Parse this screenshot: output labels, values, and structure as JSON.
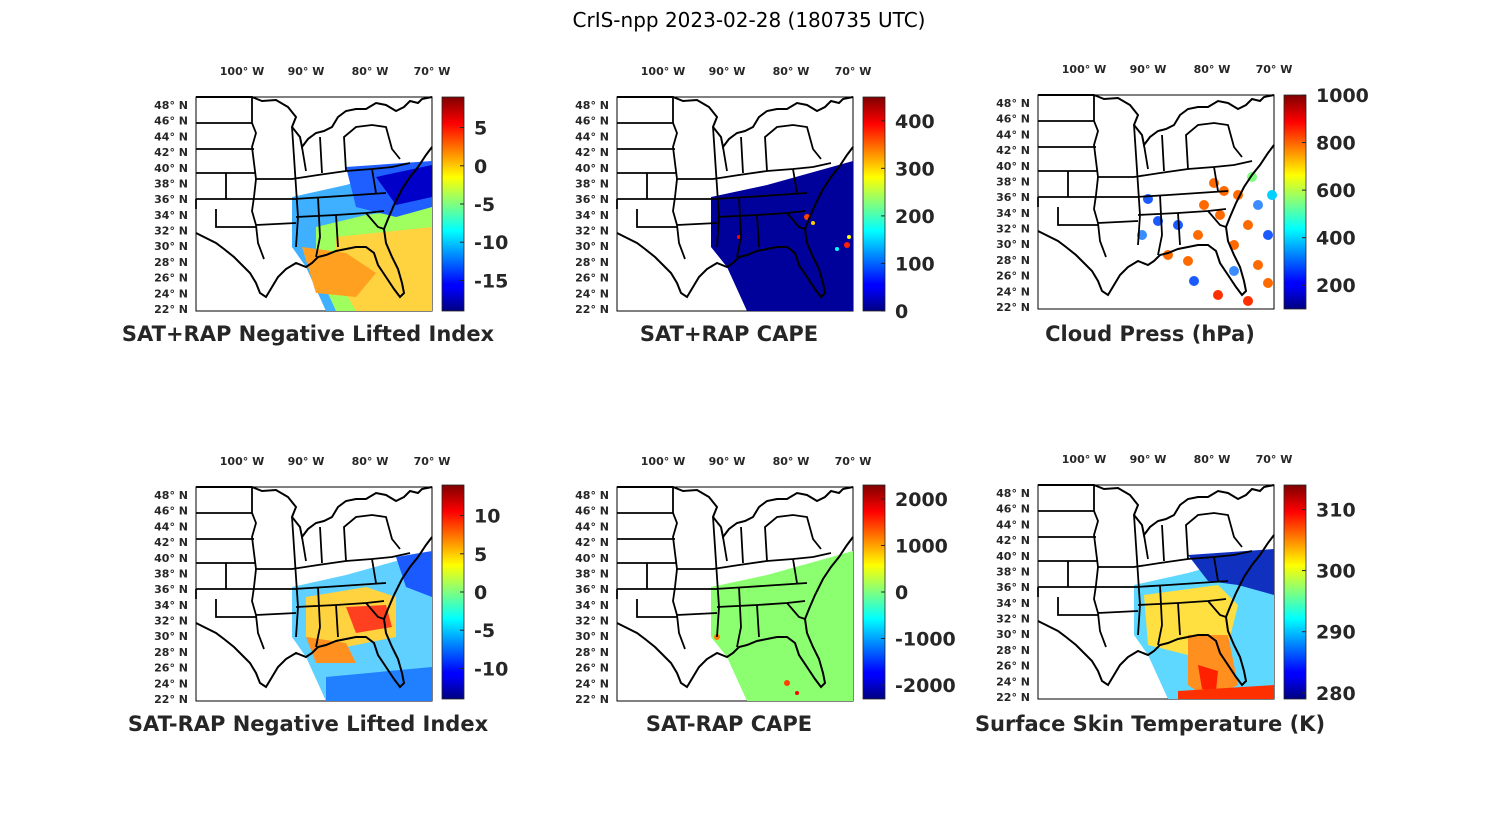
{
  "figure": {
    "suptitle": "CrIS-npp 2023-02-28 (180735 UTC)"
  },
  "chart_data": [
    {
      "type": "heatmap",
      "title": "SAT+RAP Negative Lifted Index",
      "xticks": [
        "100° W",
        "90° W",
        "80° W",
        "70° W"
      ],
      "yticks": [
        "48° N",
        "46° N",
        "44° N",
        "42° N",
        "40° N",
        "38° N",
        "36° N",
        "34° N",
        "32° N",
        "30° N",
        "28° N",
        "26° N",
        "24° N",
        "22° N"
      ],
      "colorbar": {
        "colormap": "jet",
        "range": [
          -19,
          9
        ],
        "ticks": [
          "5",
          "0",
          "-5",
          "-10",
          "-15"
        ]
      },
      "data_notes": "Swath mostly -10 to 2; warmest (yellow/orange) over Gulf and Atlantic south of 34° N; coldest (blue) over Carolinas/Virginia coast."
    },
    {
      "type": "heatmap",
      "title": "SAT+RAP CAPE",
      "xticks": [
        "100° W",
        "90° W",
        "80° W",
        "70° W"
      ],
      "yticks": [
        "48° N",
        "46° N",
        "44° N",
        "42° N",
        "40° N",
        "38° N",
        "36° N",
        "34° N",
        "32° N",
        "30° N",
        "28° N",
        "26° N",
        "24° N",
        "22° N"
      ],
      "colorbar": {
        "colormap": "jet",
        "range": [
          0,
          450
        ],
        "ticks": [
          "400",
          "300",
          "200",
          "100",
          "0"
        ]
      },
      "data_notes": "Nearly uniform ~0 J/kg; scattered high values (red) along Atlantic coast near 32-34° N."
    },
    {
      "type": "scatter",
      "title": "Cloud Press (hPa)",
      "xticks": [
        "100° W",
        "90° W",
        "80° W",
        "70° W"
      ],
      "yticks": [
        "48° N",
        "46° N",
        "44° N",
        "42° N",
        "40° N",
        "38° N",
        "36° N",
        "34° N",
        "32° N",
        "30° N",
        "28° N",
        "26° N",
        "24° N",
        "22° N"
      ],
      "colorbar": {
        "colormap": "jet",
        "range": [
          100,
          1000
        ],
        "ticks": [
          "1000",
          "800",
          "600",
          "400",
          "200"
        ]
      },
      "data_notes": "Low clouds (~800-900 hPa, orange) over Southeast and Atlantic; high clouds (~200-400 hPa, blue) over Gulf states and far offshore."
    },
    {
      "type": "heatmap",
      "title": "SAT-RAP Negative Lifted Index",
      "xticks": [
        "100° W",
        "90° W",
        "80° W",
        "70° W"
      ],
      "yticks": [
        "48° N",
        "46° N",
        "44° N",
        "42° N",
        "40° N",
        "38° N",
        "36° N",
        "34° N",
        "32° N",
        "30° N",
        "28° N",
        "26° N",
        "24° N",
        "22° N"
      ],
      "colorbar": {
        "colormap": "jet",
        "range": [
          -14,
          14
        ],
        "ticks": [
          "10",
          "5",
          "0",
          "-5",
          "-10"
        ]
      },
      "data_notes": "Positive anomalies (orange/red) over Carolinas and Deep South; negative (blue) over Gulf and offshore."
    },
    {
      "type": "heatmap",
      "title": "SAT-RAP CAPE",
      "xticks": [
        "100° W",
        "90° W",
        "80° W",
        "70° W"
      ],
      "yticks": [
        "48° N",
        "46° N",
        "44° N",
        "42° N",
        "40° N",
        "38° N",
        "36° N",
        "34° N",
        "32° N",
        "30° N",
        "28° N",
        "26° N",
        "24° N",
        "22° N"
      ],
      "colorbar": {
        "colormap": "jet",
        "range": [
          -2300,
          2300
        ],
        "ticks": [
          "2000",
          "1000",
          "0",
          "-1000",
          "-2000"
        ]
      },
      "data_notes": "Difference ~0 everywhere (light green) with a few positive spots along Gulf coast."
    },
    {
      "type": "heatmap",
      "title": "Surface Skin Temperature (K)",
      "xticks": [
        "100° W",
        "90° W",
        "80° W",
        "70° W"
      ],
      "yticks": [
        "48° N",
        "46° N",
        "44° N",
        "42° N",
        "40° N",
        "38° N",
        "36° N",
        "34° N",
        "32° N",
        "30° N",
        "28° N",
        "26° N",
        "24° N",
        "22° N"
      ],
      "colorbar": {
        "colormap": "jet",
        "range": [
          279,
          314
        ],
        "ticks": [
          "310",
          "300",
          "290",
          "280"
        ]
      },
      "data_notes": "~280 K (dark blue) in Mid-Atlantic/offshore north; ~295-300 K over Southeast; ~305-310 K over Florida and Gulf."
    }
  ]
}
